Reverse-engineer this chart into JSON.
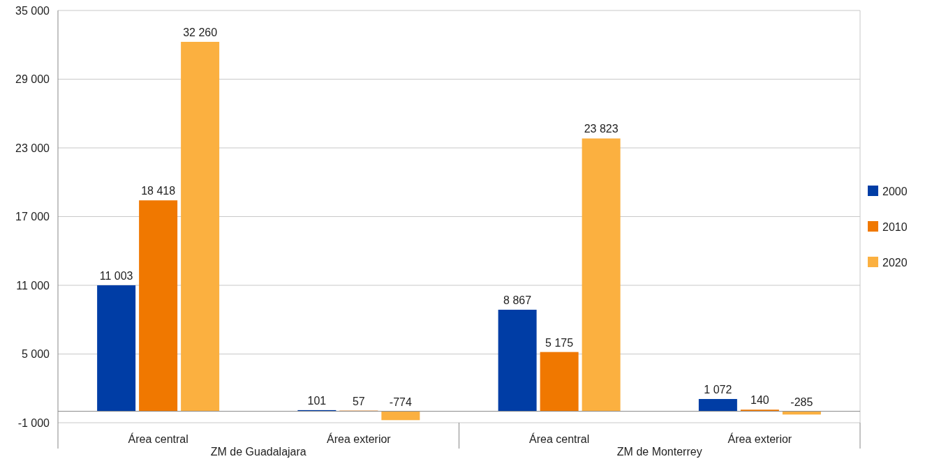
{
  "chart_data": {
    "type": "bar",
    "categories": [
      "Área central",
      "Área exterior",
      "Área central",
      "Área exterior"
    ],
    "series": [
      {
        "name": "2000",
        "color": "#003da5",
        "values": [
          11003,
          101,
          8867,
          1072
        ],
        "value_labels": [
          "11 003",
          "101",
          "8 867",
          "1 072"
        ]
      },
      {
        "name": "2010",
        "color": "#f07800",
        "values": [
          18418,
          57,
          5175,
          140
        ],
        "value_labels": [
          "18 418",
          "57",
          "5 175",
          "140"
        ]
      },
      {
        "name": "2020",
        "color": "#fbb040",
        "values": [
          32260,
          -774,
          23823,
          -285
        ],
        "value_labels": [
          "32 260",
          "-774",
          "23 823",
          "-285"
        ]
      }
    ],
    "ylim": [
      -1000,
      35000
    ],
    "yticks": [
      {
        "value": -1000,
        "label": "-1 000"
      },
      {
        "value": 5000,
        "label": "5 000"
      },
      {
        "value": 11000,
        "label": "11 000"
      },
      {
        "value": 17000,
        "label": "17 000"
      },
      {
        "value": 23000,
        "label": "23 000"
      },
      {
        "value": 29000,
        "label": "29 000"
      },
      {
        "value": 35000,
        "label": "35 000"
      }
    ],
    "annotations": [
      "ZM de Guadalajara",
      "ZM de Monterrey"
    ],
    "grid": "y",
    "legend": "right"
  }
}
